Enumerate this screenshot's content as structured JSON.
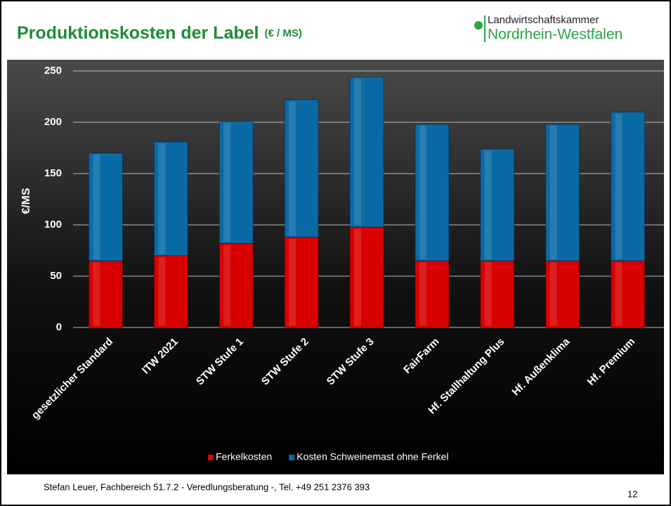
{
  "header": {
    "title": "Produktionskosten der Label",
    "unit": "(€ / MS)",
    "logo_line1": "Landwirtschaftskammer",
    "logo_line2": "Nordrhein-Westfalen"
  },
  "footer": {
    "text": "Stefan Leuer, Fachbereich 51.7.2 - Veredlungsberatung -, Tel. +49 251 2376 393",
    "page": "12"
  },
  "chart_data": {
    "type": "stacked_bar",
    "ylabel": "€/MS",
    "categories": [
      "gesetzlicher Standard",
      "ITW 2021",
      "STW Stufe 1",
      "STW Stufe 2",
      "STW Stufe 3",
      "FairFarm",
      "Hf. Stallhaltung Plus",
      "Hf. Außenklima",
      "Hf. Premium"
    ],
    "series": [
      {
        "name": "Ferkelkosten",
        "color": "#d90000",
        "values": [
          65,
          70,
          82,
          88,
          98,
          65,
          65,
          65,
          65
        ]
      },
      {
        "name": "Kosten Schweinemast ohne Ferkel",
        "color": "#0a6aa6",
        "values": [
          105,
          111,
          119,
          134,
          146,
          133,
          109,
          133,
          145
        ]
      }
    ],
    "ylim": [
      0,
      250
    ],
    "yticks": [
      0,
      50,
      100,
      150,
      200,
      250
    ],
    "grid": true,
    "legend": "bottom"
  }
}
